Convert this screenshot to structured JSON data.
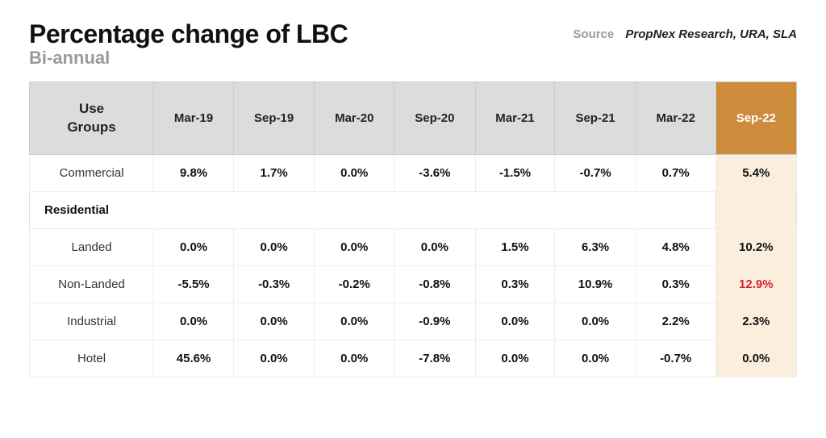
{
  "header": {
    "title": "Percentage change of LBC",
    "subtitle": "Bi-annual",
    "source_label": "Source",
    "source_text": "PropNex Research, URA, SLA"
  },
  "table": {
    "corner_label": "Use Groups",
    "columns": [
      "Mar-19",
      "Sep-19",
      "Mar-20",
      "Sep-20",
      "Mar-21",
      "Sep-21",
      "Mar-22",
      "Sep-22"
    ],
    "highlight_col_index": 7,
    "highlight_header_bg": "#cd8b3c",
    "highlight_header_fg": "#ffffff",
    "highlight_cell_bg": "#fbeedd",
    "emphasis_color": "#d8262c",
    "rows": [
      {
        "type": "data",
        "label": "Commercial",
        "values": [
          "9.8%",
          "1.7%",
          "0.0%",
          "-3.6%",
          "-1.5%",
          "-0.7%",
          "0.7%",
          "5.4%"
        ]
      },
      {
        "type": "section",
        "label": "Residential"
      },
      {
        "type": "data",
        "label": "Landed",
        "values": [
          "0.0%",
          "0.0%",
          "0.0%",
          "0.0%",
          "1.5%",
          "6.3%",
          "4.8%",
          "10.2%"
        ]
      },
      {
        "type": "data",
        "label": "Non-Landed",
        "values": [
          "-5.5%",
          "-0.3%",
          "-0.2%",
          "-0.8%",
          "0.3%",
          "10.9%",
          "0.3%",
          "12.9%"
        ],
        "emphasize_index": 7
      },
      {
        "type": "data",
        "label": "Industrial",
        "values": [
          "0.0%",
          "0.0%",
          "0.0%",
          "-0.9%",
          "0.0%",
          "0.0%",
          "2.2%",
          "2.3%"
        ]
      },
      {
        "type": "data",
        "label": "Hotel",
        "values": [
          "45.6%",
          "0.0%",
          "0.0%",
          "-7.8%",
          "0.0%",
          "0.0%",
          "-0.7%",
          "0.0%"
        ]
      }
    ]
  }
}
